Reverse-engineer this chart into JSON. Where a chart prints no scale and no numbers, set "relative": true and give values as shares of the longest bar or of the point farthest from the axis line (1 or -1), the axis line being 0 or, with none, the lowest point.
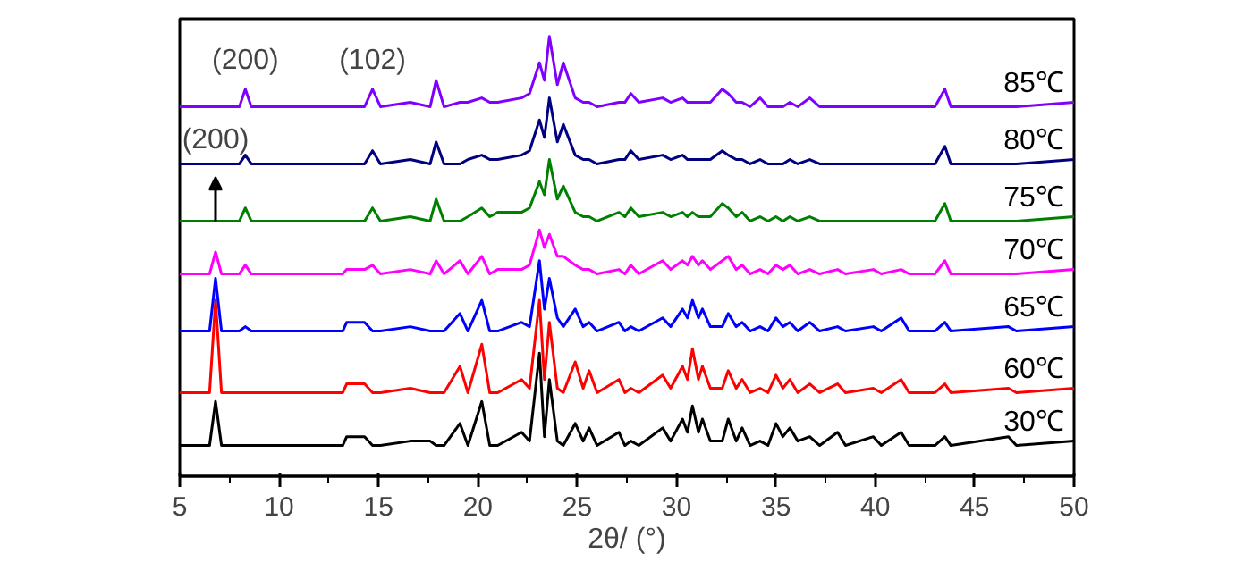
{
  "chart_data": {
    "type": "line",
    "relative": true,
    "xlabel": "2θ/ (°)",
    "xlim": [
      5,
      50
    ],
    "xticks": [
      5,
      10,
      15,
      20,
      25,
      30,
      35,
      40,
      45,
      50
    ],
    "grid": false,
    "line_style": "solid",
    "marker": "none",
    "annotations": [
      {
        "text": "(200)",
        "x": 8.3,
        "y": 0.88
      },
      {
        "text": "(102)",
        "x": 14.7,
        "y": 0.88
      },
      {
        "text": "(200)",
        "x": 6.8,
        "y": 0.58
      }
    ],
    "x": [
      5,
      6.5,
      6.8,
      7.1,
      8.0,
      8.3,
      8.6,
      13.2,
      13.4,
      13.8,
      14.3,
      14.7,
      15.1,
      16.6,
      17.6,
      17.9,
      18.3,
      19.1,
      19.5,
      20.2,
      20.6,
      21.0,
      22.2,
      22.6,
      23.1,
      23.35,
      23.6,
      24.0,
      24.3,
      24.9,
      25.3,
      25.6,
      26.0,
      27.1,
      27.4,
      27.7,
      28.1,
      29.3,
      29.7,
      30.3,
      30.55,
      30.8,
      31.1,
      31.3,
      31.7,
      32.3,
      32.6,
      33.0,
      33.3,
      33.7,
      34.2,
      34.6,
      35.0,
      35.35,
      35.7,
      36.1,
      36.7,
      37.2,
      38.1,
      38.5,
      39.9,
      40.3,
      41.3,
      41.7,
      43.0,
      43.5,
      43.8,
      46.7,
      47.1,
      50
    ],
    "series": [
      {
        "name": "30℃",
        "color": "#000000",
        "values": [
          0.07,
          0.07,
          0.17,
          0.07,
          0.07,
          0.07,
          0.07,
          0.07,
          0.09,
          0.09,
          0.09,
          0.07,
          0.07,
          0.08,
          0.08,
          0.07,
          0.07,
          0.12,
          0.07,
          0.17,
          0.07,
          0.07,
          0.1,
          0.08,
          0.28,
          0.09,
          0.22,
          0.08,
          0.07,
          0.12,
          0.08,
          0.11,
          0.07,
          0.1,
          0.07,
          0.08,
          0.07,
          0.11,
          0.08,
          0.13,
          0.1,
          0.16,
          0.1,
          0.13,
          0.08,
          0.08,
          0.13,
          0.08,
          0.11,
          0.07,
          0.08,
          0.07,
          0.12,
          0.09,
          0.11,
          0.08,
          0.09,
          0.07,
          0.1,
          0.07,
          0.09,
          0.07,
          0.1,
          0.07,
          0.07,
          0.09,
          0.07,
          0.09,
          0.07,
          0.08
        ]
      },
      {
        "name": "60℃",
        "color": "#ff0000",
        "values": [
          0.19,
          0.19,
          0.4,
          0.19,
          0.19,
          0.19,
          0.19,
          0.19,
          0.21,
          0.21,
          0.21,
          0.19,
          0.19,
          0.2,
          0.19,
          0.19,
          0.19,
          0.25,
          0.19,
          0.3,
          0.19,
          0.19,
          0.22,
          0.2,
          0.4,
          0.22,
          0.35,
          0.2,
          0.19,
          0.26,
          0.2,
          0.24,
          0.19,
          0.22,
          0.19,
          0.2,
          0.19,
          0.23,
          0.2,
          0.25,
          0.22,
          0.29,
          0.22,
          0.25,
          0.2,
          0.2,
          0.24,
          0.2,
          0.22,
          0.19,
          0.2,
          0.19,
          0.23,
          0.2,
          0.22,
          0.19,
          0.21,
          0.19,
          0.21,
          0.19,
          0.2,
          0.19,
          0.22,
          0.19,
          0.19,
          0.21,
          0.19,
          0.2,
          0.19,
          0.2
        ]
      },
      {
        "name": "65℃",
        "color": "#0000ff",
        "values": [
          0.33,
          0.33,
          0.45,
          0.33,
          0.33,
          0.34,
          0.33,
          0.33,
          0.35,
          0.35,
          0.35,
          0.33,
          0.33,
          0.34,
          0.33,
          0.33,
          0.33,
          0.37,
          0.33,
          0.4,
          0.33,
          0.33,
          0.35,
          0.34,
          0.49,
          0.38,
          0.45,
          0.36,
          0.34,
          0.38,
          0.34,
          0.35,
          0.33,
          0.35,
          0.33,
          0.34,
          0.33,
          0.36,
          0.34,
          0.38,
          0.36,
          0.4,
          0.36,
          0.38,
          0.34,
          0.34,
          0.37,
          0.34,
          0.35,
          0.33,
          0.34,
          0.33,
          0.36,
          0.34,
          0.35,
          0.33,
          0.35,
          0.33,
          0.34,
          0.33,
          0.34,
          0.33,
          0.36,
          0.33,
          0.33,
          0.35,
          0.33,
          0.34,
          0.33,
          0.34
        ]
      },
      {
        "name": "70℃",
        "color": "#ff00ff",
        "values": [
          0.46,
          0.46,
          0.51,
          0.46,
          0.46,
          0.48,
          0.46,
          0.46,
          0.47,
          0.47,
          0.47,
          0.48,
          0.46,
          0.47,
          0.46,
          0.49,
          0.46,
          0.49,
          0.46,
          0.5,
          0.46,
          0.47,
          0.47,
          0.48,
          0.56,
          0.52,
          0.55,
          0.5,
          0.5,
          0.48,
          0.47,
          0.47,
          0.46,
          0.47,
          0.46,
          0.48,
          0.46,
          0.49,
          0.47,
          0.49,
          0.48,
          0.5,
          0.48,
          0.49,
          0.47,
          0.49,
          0.5,
          0.47,
          0.48,
          0.46,
          0.47,
          0.46,
          0.48,
          0.47,
          0.48,
          0.46,
          0.47,
          0.46,
          0.47,
          0.46,
          0.47,
          0.46,
          0.47,
          0.46,
          0.46,
          0.49,
          0.46,
          0.46,
          0.46,
          0.47
        ]
      },
      {
        "name": "75℃",
        "color": "#008000",
        "values": [
          0.58,
          0.58,
          0.58,
          0.58,
          0.58,
          0.61,
          0.58,
          0.58,
          0.58,
          0.58,
          0.58,
          0.61,
          0.58,
          0.59,
          0.58,
          0.63,
          0.58,
          0.58,
          0.59,
          0.61,
          0.59,
          0.6,
          0.6,
          0.61,
          0.67,
          0.64,
          0.72,
          0.63,
          0.66,
          0.6,
          0.59,
          0.59,
          0.58,
          0.6,
          0.59,
          0.61,
          0.59,
          0.6,
          0.59,
          0.6,
          0.59,
          0.6,
          0.59,
          0.59,
          0.59,
          0.62,
          0.61,
          0.59,
          0.6,
          0.58,
          0.59,
          0.58,
          0.59,
          0.58,
          0.59,
          0.58,
          0.59,
          0.58,
          0.58,
          0.58,
          0.58,
          0.58,
          0.58,
          0.58,
          0.58,
          0.62,
          0.58,
          0.58,
          0.58,
          0.59
        ]
      },
      {
        "name": "80℃",
        "color": "#000080",
        "values": [
          0.71,
          0.71,
          0.71,
          0.71,
          0.71,
          0.73,
          0.71,
          0.71,
          0.71,
          0.71,
          0.71,
          0.74,
          0.71,
          0.72,
          0.71,
          0.76,
          0.71,
          0.71,
          0.72,
          0.73,
          0.72,
          0.72,
          0.73,
          0.74,
          0.81,
          0.77,
          0.86,
          0.76,
          0.8,
          0.73,
          0.72,
          0.72,
          0.71,
          0.72,
          0.72,
          0.74,
          0.72,
          0.73,
          0.72,
          0.73,
          0.72,
          0.72,
          0.72,
          0.72,
          0.72,
          0.74,
          0.73,
          0.72,
          0.72,
          0.71,
          0.72,
          0.71,
          0.71,
          0.71,
          0.72,
          0.71,
          0.72,
          0.71,
          0.71,
          0.71,
          0.71,
          0.71,
          0.71,
          0.71,
          0.71,
          0.75,
          0.71,
          0.71,
          0.71,
          0.72
        ]
      },
      {
        "name": "85℃",
        "color": "#8000ff",
        "values": [
          0.84,
          0.84,
          0.84,
          0.84,
          0.84,
          0.88,
          0.84,
          0.84,
          0.84,
          0.84,
          0.84,
          0.88,
          0.84,
          0.85,
          0.84,
          0.9,
          0.84,
          0.85,
          0.85,
          0.86,
          0.85,
          0.85,
          0.86,
          0.87,
          0.94,
          0.9,
          1.0,
          0.89,
          0.94,
          0.86,
          0.85,
          0.85,
          0.84,
          0.85,
          0.85,
          0.87,
          0.85,
          0.86,
          0.85,
          0.86,
          0.85,
          0.85,
          0.85,
          0.85,
          0.85,
          0.88,
          0.87,
          0.85,
          0.85,
          0.84,
          0.86,
          0.84,
          0.84,
          0.84,
          0.85,
          0.84,
          0.86,
          0.84,
          0.84,
          0.84,
          0.84,
          0.84,
          0.84,
          0.84,
          0.84,
          0.88,
          0.84,
          0.84,
          0.84,
          0.85
        ]
      }
    ]
  }
}
